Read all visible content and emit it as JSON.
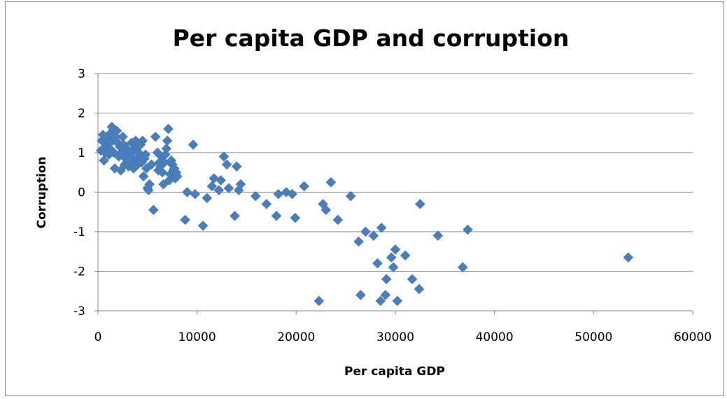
{
  "chart_data": {
    "type": "scatter",
    "title": "Per capita GDP and corruption",
    "xlabel": "Per capita GDP",
    "ylabel": "Corruption",
    "xlim": [
      0,
      60000
    ],
    "ylim": [
      -3,
      3
    ],
    "xticks": [
      0,
      10000,
      20000,
      30000,
      40000,
      50000,
      60000
    ],
    "yticks": [
      -3,
      -2,
      -1,
      0,
      1,
      2,
      3
    ],
    "grid": "horizontal",
    "legend": "none",
    "marker": "diamond",
    "color": "#4a7ebb",
    "points": [
      [
        300,
        1.05
      ],
      [
        400,
        1.3
      ],
      [
        500,
        1.45
      ],
      [
        600,
        0.8
      ],
      [
        700,
        1.0
      ],
      [
        800,
        1.15
      ],
      [
        900,
        1.2
      ],
      [
        1000,
        1.35
      ],
      [
        1100,
        0.95
      ],
      [
        1200,
        1.1
      ],
      [
        1300,
        1.5
      ],
      [
        1400,
        1.65
      ],
      [
        1500,
        1.3
      ],
      [
        1600,
        1.0
      ],
      [
        1700,
        0.6
      ],
      [
        1800,
        1.4
      ],
      [
        1900,
        1.55
      ],
      [
        2000,
        1.25
      ],
      [
        2100,
        0.9
      ],
      [
        2200,
        1.15
      ],
      [
        2300,
        0.55
      ],
      [
        2400,
        1.0
      ],
      [
        2500,
        1.4
      ],
      [
        2600,
        1.2
      ],
      [
        2700,
        0.7
      ],
      [
        2800,
        0.85
      ],
      [
        2900,
        1.1
      ],
      [
        3000,
        1.0
      ],
      [
        3100,
        0.65
      ],
      [
        3200,
        0.75
      ],
      [
        3300,
        0.95
      ],
      [
        3400,
        1.25
      ],
      [
        3500,
        1.05
      ],
      [
        3600,
        0.6
      ],
      [
        3700,
        0.8
      ],
      [
        3800,
        1.3
      ],
      [
        3900,
        1.15
      ],
      [
        4000,
        0.7
      ],
      [
        4100,
        1.0
      ],
      [
        4200,
        0.9
      ],
      [
        4300,
        1.2
      ],
      [
        4400,
        0.75
      ],
      [
        4500,
        1.3
      ],
      [
        4600,
        0.4
      ],
      [
        4700,
        0.85
      ],
      [
        4800,
        0.95
      ],
      [
        4900,
        0.6
      ],
      [
        5000,
        0.1
      ],
      [
        5100,
        0.05
      ],
      [
        5200,
        0.2
      ],
      [
        5400,
        0.7
      ],
      [
        5600,
        -0.45
      ],
      [
        5800,
        1.4
      ],
      [
        6000,
        1.0
      ],
      [
        6100,
        0.55
      ],
      [
        6200,
        0.75
      ],
      [
        6300,
        0.65
      ],
      [
        6400,
        0.9
      ],
      [
        6500,
        0.5
      ],
      [
        6600,
        0.2
      ],
      [
        6700,
        0.75
      ],
      [
        6800,
        0.95
      ],
      [
        6900,
        1.1
      ],
      [
        7000,
        1.3
      ],
      [
        7100,
        1.6
      ],
      [
        7200,
        0.3
      ],
      [
        7300,
        0.45
      ],
      [
        7400,
        0.8
      ],
      [
        7500,
        0.7
      ],
      [
        7600,
        0.55
      ],
      [
        7700,
        0.6
      ],
      [
        7800,
        0.35
      ],
      [
        7900,
        0.5
      ],
      [
        8000,
        0.4
      ],
      [
        8800,
        -0.7
      ],
      [
        9000,
        0.0
      ],
      [
        9600,
        1.2
      ],
      [
        9800,
        -0.05
      ],
      [
        10600,
        -0.85
      ],
      [
        11000,
        -0.15
      ],
      [
        11500,
        0.15
      ],
      [
        11700,
        0.35
      ],
      [
        12200,
        0.05
      ],
      [
        12400,
        0.3
      ],
      [
        12700,
        0.9
      ],
      [
        13000,
        0.7
      ],
      [
        13200,
        0.1
      ],
      [
        13800,
        -0.6
      ],
      [
        14000,
        0.65
      ],
      [
        14200,
        0.05
      ],
      [
        14400,
        0.2
      ],
      [
        15900,
        -0.1
      ],
      [
        17000,
        -0.3
      ],
      [
        18000,
        -0.6
      ],
      [
        18200,
        -0.05
      ],
      [
        19000,
        0.0
      ],
      [
        19600,
        -0.05
      ],
      [
        19900,
        -0.65
      ],
      [
        20800,
        0.15
      ],
      [
        22300,
        -2.75
      ],
      [
        22700,
        -0.3
      ],
      [
        23000,
        -0.45
      ],
      [
        23500,
        0.25
      ],
      [
        24200,
        -0.7
      ],
      [
        25500,
        -0.1
      ],
      [
        26300,
        -1.25
      ],
      [
        26500,
        -2.6
      ],
      [
        27000,
        -1.0
      ],
      [
        27800,
        -1.1
      ],
      [
        28200,
        -1.8
      ],
      [
        28500,
        -2.75
      ],
      [
        28600,
        -0.9
      ],
      [
        29000,
        -2.6
      ],
      [
        29100,
        -2.2
      ],
      [
        29600,
        -1.65
      ],
      [
        29800,
        -1.9
      ],
      [
        30000,
        -1.45
      ],
      [
        30200,
        -2.75
      ],
      [
        31000,
        -1.6
      ],
      [
        31700,
        -2.2
      ],
      [
        32400,
        -2.45
      ],
      [
        32500,
        -0.3
      ],
      [
        34300,
        -1.1
      ],
      [
        36800,
        -1.9
      ],
      [
        37300,
        -0.95
      ],
      [
        53500,
        -1.65
      ]
    ]
  }
}
